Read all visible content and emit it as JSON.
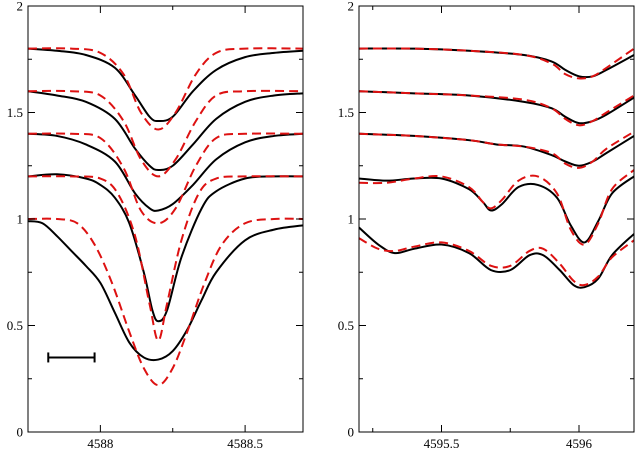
{
  "chart_data": [
    {
      "type": "line",
      "title": "",
      "xlabel": "",
      "ylabel": "",
      "xlim": [
        4587.75,
        4588.7
      ],
      "ylim": [
        0,
        2
      ],
      "xticks": [
        4588,
        4588.5
      ],
      "xtick_labels": [
        "4588",
        "4588.5"
      ],
      "yticks": [
        0,
        0.5,
        1,
        1.5,
        2
      ],
      "ytick_labels": [
        "0",
        "0.5",
        "1",
        "1.5",
        "2"
      ],
      "grid": false,
      "scale_bar": {
        "x_start": 4587.82,
        "x_end": 4587.98,
        "y": 0.35
      },
      "series": [
        {
          "style": "observed",
          "color": "#000000",
          "dash": "solid",
          "x": [
            4587.75,
            4587.85,
            4587.95,
            4588.05,
            4588.12,
            4588.17,
            4588.2,
            4588.25,
            4588.32,
            4588.4,
            4588.5,
            4588.6,
            4588.7
          ],
          "y": [
            1.8,
            1.79,
            1.77,
            1.71,
            1.58,
            1.48,
            1.46,
            1.48,
            1.6,
            1.7,
            1.76,
            1.78,
            1.79
          ]
        },
        {
          "style": "model",
          "color": "#dd1111",
          "dash": "dashed",
          "x": [
            4587.75,
            4587.9,
            4588.0,
            4588.08,
            4588.14,
            4588.2,
            4588.26,
            4588.33,
            4588.4,
            4588.5,
            4588.7
          ],
          "y": [
            1.8,
            1.8,
            1.78,
            1.68,
            1.5,
            1.42,
            1.5,
            1.68,
            1.78,
            1.8,
            1.8
          ]
        },
        {
          "style": "observed",
          "color": "#000000",
          "dash": "solid",
          "x": [
            4587.75,
            4587.85,
            4587.95,
            4588.05,
            4588.12,
            4588.17,
            4588.2,
            4588.25,
            4588.32,
            4588.4,
            4588.5,
            4588.6,
            4588.7
          ],
          "y": [
            1.6,
            1.58,
            1.55,
            1.47,
            1.33,
            1.25,
            1.23,
            1.25,
            1.35,
            1.47,
            1.55,
            1.58,
            1.59
          ]
        },
        {
          "style": "model",
          "color": "#dd1111",
          "dash": "dashed",
          "x": [
            4587.75,
            4587.9,
            4588.0,
            4588.08,
            4588.14,
            4588.2,
            4588.26,
            4588.33,
            4588.4,
            4588.5,
            4588.7
          ],
          "y": [
            1.6,
            1.6,
            1.58,
            1.46,
            1.28,
            1.2,
            1.28,
            1.46,
            1.58,
            1.6,
            1.6
          ]
        },
        {
          "style": "observed",
          "color": "#000000",
          "dash": "solid",
          "x": [
            4587.75,
            4587.85,
            4587.95,
            4588.05,
            4588.12,
            4588.17,
            4588.2,
            4588.25,
            4588.32,
            4588.4,
            4588.5,
            4588.6,
            4588.7
          ],
          "y": [
            1.4,
            1.39,
            1.35,
            1.27,
            1.12,
            1.05,
            1.04,
            1.07,
            1.16,
            1.28,
            1.36,
            1.39,
            1.4
          ]
        },
        {
          "style": "model",
          "color": "#dd1111",
          "dash": "dashed",
          "x": [
            4587.75,
            4587.9,
            4588.0,
            4588.08,
            4588.14,
            4588.2,
            4588.26,
            4588.33,
            4588.4,
            4588.5,
            4588.7
          ],
          "y": [
            1.4,
            1.4,
            1.38,
            1.24,
            1.04,
            0.98,
            1.05,
            1.25,
            1.38,
            1.4,
            1.4
          ]
        },
        {
          "style": "observed",
          "color": "#000000",
          "dash": "solid",
          "x": [
            4587.75,
            4587.85,
            4587.95,
            4588.0,
            4588.05,
            4588.1,
            4588.15,
            4588.18,
            4588.2,
            4588.23,
            4588.28,
            4588.35,
            4588.4,
            4588.5,
            4588.6,
            4588.7
          ],
          "y": [
            1.2,
            1.21,
            1.19,
            1.16,
            1.1,
            0.98,
            0.75,
            0.57,
            0.52,
            0.57,
            0.82,
            1.05,
            1.13,
            1.19,
            1.2,
            1.2
          ]
        },
        {
          "style": "model",
          "color": "#dd1111",
          "dash": "dashed",
          "x": [
            4587.75,
            4587.9,
            4588.0,
            4588.06,
            4588.12,
            4588.17,
            4588.2,
            4588.23,
            4588.28,
            4588.34,
            4588.4,
            4588.5,
            4588.7
          ],
          "y": [
            1.2,
            1.2,
            1.19,
            1.12,
            0.92,
            0.6,
            0.43,
            0.6,
            0.9,
            1.12,
            1.19,
            1.2,
            1.2
          ]
        },
        {
          "style": "observed",
          "color": "#000000",
          "dash": "solid",
          "x": [
            4587.75,
            4587.8,
            4587.85,
            4587.9,
            4587.95,
            4588.0,
            4588.05,
            4588.1,
            4588.15,
            4588.2,
            4588.25,
            4588.3,
            4588.35,
            4588.4,
            4588.5,
            4588.6,
            4588.7
          ],
          "y": [
            0.99,
            0.98,
            0.92,
            0.85,
            0.78,
            0.7,
            0.56,
            0.42,
            0.35,
            0.34,
            0.38,
            0.48,
            0.62,
            0.75,
            0.9,
            0.95,
            0.97
          ]
        },
        {
          "style": "model",
          "color": "#dd1111",
          "dash": "dashed",
          "x": [
            4587.75,
            4587.85,
            4587.92,
            4587.98,
            4588.04,
            4588.1,
            4588.15,
            4588.2,
            4588.25,
            4588.3,
            4588.36,
            4588.42,
            4588.5,
            4588.6,
            4588.7
          ],
          "y": [
            1.0,
            1.0,
            0.98,
            0.88,
            0.7,
            0.47,
            0.3,
            0.22,
            0.3,
            0.47,
            0.7,
            0.88,
            0.98,
            1.0,
            1.0
          ]
        }
      ]
    },
    {
      "type": "line",
      "title": "",
      "xlabel": "",
      "ylabel": "",
      "xlim": [
        4595.2,
        4596.2
      ],
      "ylim": [
        0,
        2
      ],
      "xticks": [
        4595.5,
        4596
      ],
      "xtick_labels": [
        "4595.5",
        "4596"
      ],
      "yticks": [
        0,
        0.5,
        1,
        1.5,
        2
      ],
      "ytick_labels": [
        "0",
        "0.5",
        "1",
        "1.5",
        "2"
      ],
      "grid": false,
      "series": [
        {
          "style": "observed",
          "color": "#000000",
          "dash": "solid",
          "x": [
            4595.2,
            4595.4,
            4595.6,
            4595.8,
            4595.9,
            4595.95,
            4596.0,
            4596.05,
            4596.1,
            4596.2
          ],
          "y": [
            1.8,
            1.8,
            1.79,
            1.77,
            1.74,
            1.7,
            1.67,
            1.67,
            1.7,
            1.77
          ]
        },
        {
          "style": "model",
          "color": "#dd1111",
          "dash": "dashed",
          "x": [
            4595.2,
            4595.4,
            4595.6,
            4595.8,
            4595.9,
            4595.95,
            4596.0,
            4596.05,
            4596.1,
            4596.2
          ],
          "y": [
            1.8,
            1.8,
            1.79,
            1.77,
            1.73,
            1.68,
            1.66,
            1.67,
            1.71,
            1.8
          ]
        },
        {
          "style": "observed",
          "color": "#000000",
          "dash": "solid",
          "x": [
            4595.2,
            4595.4,
            4595.6,
            4595.8,
            4595.9,
            4595.95,
            4596.0,
            4596.05,
            4596.1,
            4596.2
          ],
          "y": [
            1.6,
            1.59,
            1.58,
            1.55,
            1.52,
            1.48,
            1.45,
            1.46,
            1.49,
            1.57
          ]
        },
        {
          "style": "model",
          "color": "#dd1111",
          "dash": "dashed",
          "x": [
            4595.2,
            4595.4,
            4595.6,
            4595.8,
            4595.9,
            4595.95,
            4596.0,
            4596.05,
            4596.1,
            4596.2
          ],
          "y": [
            1.6,
            1.59,
            1.58,
            1.56,
            1.52,
            1.47,
            1.44,
            1.46,
            1.5,
            1.58
          ]
        },
        {
          "style": "observed",
          "color": "#000000",
          "dash": "solid",
          "x": [
            4595.2,
            4595.4,
            4595.6,
            4595.7,
            4595.8,
            4595.9,
            4595.95,
            4596.0,
            4596.05,
            4596.1,
            4596.2
          ],
          "y": [
            1.4,
            1.39,
            1.37,
            1.35,
            1.34,
            1.3,
            1.27,
            1.25,
            1.27,
            1.31,
            1.39
          ]
        },
        {
          "style": "model",
          "color": "#dd1111",
          "dash": "dashed",
          "x": [
            4595.2,
            4595.4,
            4595.6,
            4595.7,
            4595.8,
            4595.9,
            4595.95,
            4596.0,
            4596.05,
            4596.1,
            4596.2
          ],
          "y": [
            1.4,
            1.39,
            1.37,
            1.35,
            1.34,
            1.31,
            1.26,
            1.24,
            1.27,
            1.33,
            1.41
          ]
        },
        {
          "style": "observed",
          "color": "#000000",
          "dash": "solid",
          "x": [
            4595.2,
            4595.3,
            4595.4,
            4595.5,
            4595.6,
            4595.65,
            4595.68,
            4595.72,
            4595.78,
            4595.85,
            4595.92,
            4595.97,
            4596.02,
            4596.07,
            4596.12,
            4596.2
          ],
          "y": [
            1.19,
            1.18,
            1.19,
            1.19,
            1.14,
            1.08,
            1.04,
            1.07,
            1.15,
            1.16,
            1.1,
            0.97,
            0.89,
            0.99,
            1.12,
            1.2
          ]
        },
        {
          "style": "model",
          "color": "#dd1111",
          "dash": "dashed",
          "x": [
            4595.2,
            4595.3,
            4595.4,
            4595.5,
            4595.6,
            4595.65,
            4595.68,
            4595.72,
            4595.78,
            4595.85,
            4595.92,
            4595.97,
            4596.02,
            4596.07,
            4596.12,
            4596.2
          ],
          "y": [
            1.17,
            1.17,
            1.19,
            1.2,
            1.15,
            1.08,
            1.05,
            1.09,
            1.18,
            1.2,
            1.12,
            0.95,
            0.88,
            0.98,
            1.14,
            1.23
          ]
        },
        {
          "style": "observed",
          "color": "#000000",
          "dash": "solid",
          "x": [
            4595.2,
            4595.27,
            4595.33,
            4595.4,
            4595.5,
            4595.6,
            4595.68,
            4595.75,
            4595.82,
            4595.87,
            4595.93,
            4595.98,
            4596.02,
            4596.07,
            4596.12,
            4596.2
          ],
          "y": [
            0.96,
            0.88,
            0.84,
            0.86,
            0.88,
            0.84,
            0.76,
            0.76,
            0.83,
            0.83,
            0.76,
            0.69,
            0.68,
            0.72,
            0.83,
            0.93
          ]
        },
        {
          "style": "model",
          "color": "#dd1111",
          "dash": "dashed",
          "x": [
            4595.2,
            4595.27,
            4595.33,
            4595.4,
            4595.5,
            4595.6,
            4595.68,
            4595.75,
            4595.82,
            4595.87,
            4595.93,
            4595.98,
            4596.02,
            4596.07,
            4596.12,
            4596.2
          ],
          "y": [
            0.91,
            0.86,
            0.85,
            0.87,
            0.89,
            0.85,
            0.78,
            0.78,
            0.85,
            0.86,
            0.79,
            0.71,
            0.69,
            0.73,
            0.82,
            0.9
          ]
        }
      ]
    }
  ]
}
